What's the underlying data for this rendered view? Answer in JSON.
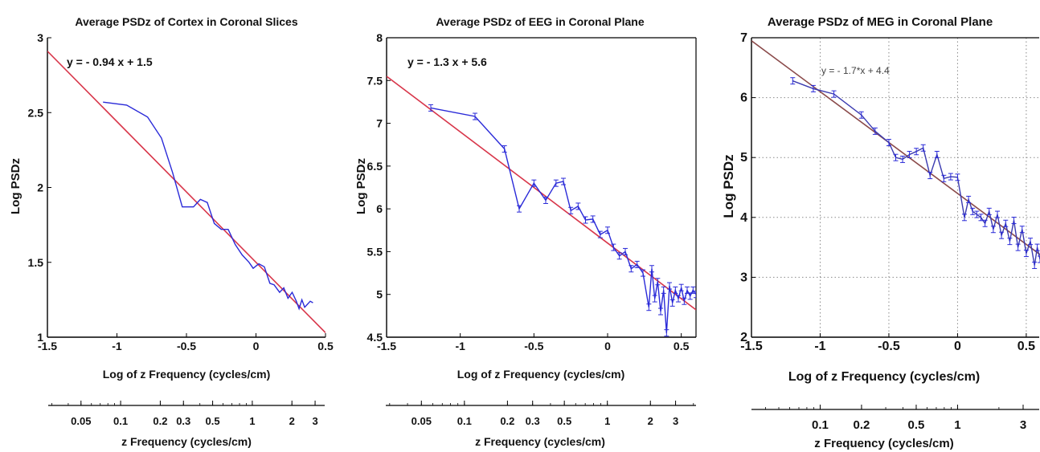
{
  "colors": {
    "data_line": "#2a2ad8",
    "fit_line": "#d8364a",
    "axis": "#000000",
    "grid": "#8a8a8a",
    "text": "#111111"
  },
  "chart_data": [
    {
      "type": "line",
      "title": "Average PSDz of Cortex in Coronal Slices",
      "xlabel": "Log of z Frequency (cycles/cm)",
      "ylabel": "Log PSDz",
      "xlim": [
        -1.5,
        0.5
      ],
      "ylim": [
        1,
        3
      ],
      "xticks": [
        "-1.5",
        "-1",
        "-0.5",
        "0",
        "0.5"
      ],
      "yticks": [
        "1",
        "1.5",
        "2",
        "2.5",
        "3"
      ],
      "grid": false,
      "error_bars": false,
      "fit_label": "y = - 0.94 x + 1.5",
      "fit": {
        "slope": -0.94,
        "intercept": 1.5
      },
      "secondary_xlabel": "z Frequency (cycles/cm)",
      "secondary_ticks": [
        "0.05",
        "0.1",
        "0.2",
        "0.3",
        "0.5",
        "1",
        "2",
        "3"
      ],
      "series": [
        {
          "x": [
            -1.1,
            -0.93,
            -0.78,
            -0.68,
            -0.6,
            -0.53,
            -0.45,
            -0.4,
            -0.35,
            -0.3,
            -0.25,
            -0.2,
            -0.15,
            -0.1,
            -0.05,
            -0.02,
            0.02,
            0.06,
            0.1,
            0.13,
            0.17,
            0.2,
            0.23,
            0.26,
            0.29,
            0.31,
            0.33,
            0.35,
            0.37,
            0.39,
            0.41
          ],
          "y": [
            2.57,
            2.55,
            2.47,
            2.33,
            2.1,
            1.87,
            1.87,
            1.92,
            1.9,
            1.76,
            1.72,
            1.72,
            1.62,
            1.55,
            1.5,
            1.46,
            1.49,
            1.47,
            1.36,
            1.35,
            1.3,
            1.33,
            1.26,
            1.3,
            1.24,
            1.19,
            1.25,
            1.2,
            1.22,
            1.24,
            1.23
          ]
        }
      ]
    },
    {
      "type": "line",
      "title": "Average PSDz of EEG in Coronal Plane",
      "xlabel": "Log of z Frequency (cycles/cm)",
      "ylabel": "Log PSDz",
      "xlim": [
        -1.5,
        0.6
      ],
      "ylim": [
        4.5,
        8
      ],
      "xticks": [
        "-1.5",
        "-1",
        "-0.5",
        "0",
        "0.5"
      ],
      "yticks": [
        "4.5",
        "5",
        "5.5",
        "6",
        "6.5",
        "7",
        "7.5",
        "8"
      ],
      "grid": false,
      "error_bars": true,
      "fit_label": "y = - 1.3 x + 5.6",
      "fit": {
        "slope": -1.3,
        "intercept": 5.6
      },
      "secondary_xlabel": "z Frequency (cycles/cm)",
      "secondary_ticks": [
        "0.05",
        "0.1",
        "0.2",
        "0.3",
        "0.5",
        "1",
        "2",
        "3"
      ],
      "series": [
        {
          "x": [
            -1.2,
            -0.9,
            -0.7,
            -0.6,
            -0.5,
            -0.42,
            -0.35,
            -0.3,
            -0.25,
            -0.2,
            -0.15,
            -0.1,
            -0.05,
            0,
            0.04,
            0.08,
            0.12,
            0.16,
            0.2,
            0.24,
            0.28,
            0.3,
            0.32,
            0.34,
            0.36,
            0.38,
            0.4,
            0.42,
            0.44,
            0.46,
            0.48,
            0.5,
            0.52,
            0.54,
            0.56,
            0.58,
            0.6
          ],
          "y": [
            7.18,
            7.08,
            6.7,
            6.0,
            6.3,
            6.1,
            6.3,
            6.32,
            5.98,
            6.03,
            5.87,
            5.88,
            5.7,
            5.75,
            5.55,
            5.45,
            5.5,
            5.3,
            5.35,
            5.25,
            4.85,
            5.3,
            4.95,
            5.15,
            4.8,
            5.05,
            4.55,
            5.1,
            4.9,
            5.05,
            4.95,
            5.08,
            4.92,
            5.05,
            4.98,
            5.05,
            5.0
          ]
        }
      ]
    },
    {
      "type": "line",
      "title": "Average PSDz of MEG in Coronal Plane",
      "xlabel": "Log of z Frequency (cycles/cm)",
      "ylabel": "Log PSDz",
      "xlim": [
        -1.5,
        0.6
      ],
      "ylim": [
        2,
        7
      ],
      "xticks": [
        "-1.5",
        "-1",
        "-0.5",
        "0",
        "0.5"
      ],
      "yticks": [
        "2",
        "3",
        "4",
        "5",
        "6",
        "7"
      ],
      "grid": true,
      "error_bars": true,
      "fit_label": "y = - 1.7*x + 4.4",
      "fit": {
        "slope": -1.7,
        "intercept": 4.4
      },
      "secondary_xlabel": "z Frequency (cycles/cm)",
      "secondary_ticks": [
        "0.1",
        "0.2",
        "0.5",
        "1",
        "3"
      ],
      "series": [
        {
          "x": [
            -1.2,
            -1.05,
            -0.9,
            -0.7,
            -0.6,
            -0.5,
            -0.45,
            -0.4,
            -0.35,
            -0.3,
            -0.25,
            -0.2,
            -0.15,
            -0.1,
            -0.05,
            0,
            0.05,
            0.08,
            0.11,
            0.14,
            0.17,
            0.2,
            0.23,
            0.26,
            0.29,
            0.32,
            0.35,
            0.38,
            0.41,
            0.44,
            0.47,
            0.5,
            0.53,
            0.56,
            0.58,
            0.6
          ],
          "y": [
            6.28,
            6.15,
            6.06,
            5.71,
            5.44,
            5.25,
            5.0,
            4.97,
            5.05,
            5.1,
            5.16,
            4.7,
            5.05,
            4.65,
            4.68,
            4.67,
            4.0,
            4.3,
            4.1,
            4.05,
            4.0,
            3.9,
            4.1,
            3.8,
            4.05,
            3.7,
            3.9,
            3.6,
            3.95,
            3.5,
            3.8,
            3.4,
            3.6,
            3.2,
            3.5,
            3.3
          ]
        }
      ]
    }
  ]
}
